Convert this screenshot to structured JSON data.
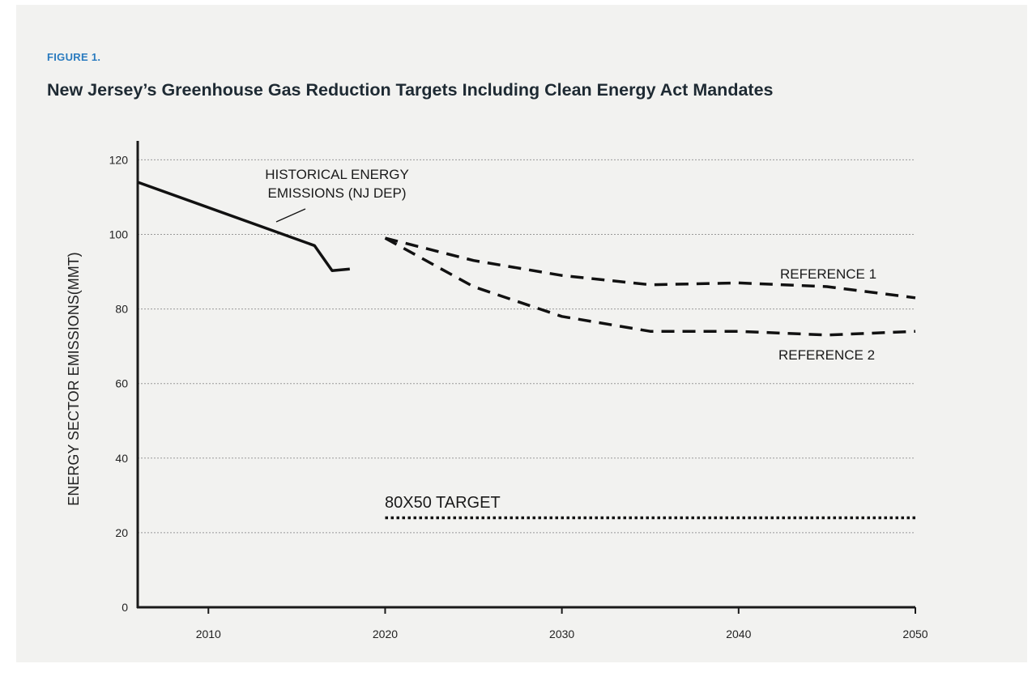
{
  "figure_label": "FIGURE 1.",
  "title": "New Jersey’s Greenhouse Gas Reduction Targets Including Clean Energy Act Mandates",
  "chart_data": {
    "type": "line",
    "title": "New Jersey’s Greenhouse Gas Reduction Targets Including Clean Energy Act Mandates",
    "xlabel": "",
    "ylabel": "ENERGY SECTOR EMISSIONS(MMT)",
    "xlim": [
      2006,
      2050
    ],
    "ylim": [
      0,
      125
    ],
    "x_ticks": [
      2010,
      2020,
      2030,
      2040,
      2050
    ],
    "y_ticks": [
      0,
      20,
      40,
      60,
      80,
      100,
      120
    ],
    "grid": "horizontal dotted",
    "series": [
      {
        "label": "HISTORICAL ENERGY EMISSIONS (NJ DEP)",
        "style": "solid",
        "x": [
          2006,
          2016,
          2017,
          2018
        ],
        "y": [
          114,
          97,
          90.3,
          90.7
        ]
      },
      {
        "label": "REFERENCE 1",
        "style": "dashed",
        "x": [
          2020,
          2025,
          2030,
          2035,
          2040,
          2045,
          2050
        ],
        "y": [
          99,
          93,
          89,
          86.5,
          87,
          86,
          83
        ]
      },
      {
        "label": "REFERENCE 2",
        "style": "dashed",
        "x": [
          2020,
          2025,
          2030,
          2035,
          2040,
          2045,
          2050
        ],
        "y": [
          99,
          86,
          78,
          74,
          74,
          73,
          74
        ]
      },
      {
        "label": "80X50 TARGET",
        "style": "dotted",
        "x": [
          2020,
          2050
        ],
        "y": [
          24,
          24
        ]
      }
    ],
    "annotations": [
      {
        "text_lines": [
          "HISTORICAL ENERGY",
          "EMISSIONS (NJ DEP)"
        ],
        "series": 0
      },
      {
        "text_lines": [
          "REFERENCE 1"
        ],
        "series": 1
      },
      {
        "text_lines": [
          "REFERENCE 2"
        ],
        "series": 2
      },
      {
        "text_lines": [
          "80X50 TARGET"
        ],
        "series": 3
      }
    ],
    "colors": {
      "line": "#111111",
      "grid": "#999999",
      "axis": "#1a1a1a"
    }
  }
}
